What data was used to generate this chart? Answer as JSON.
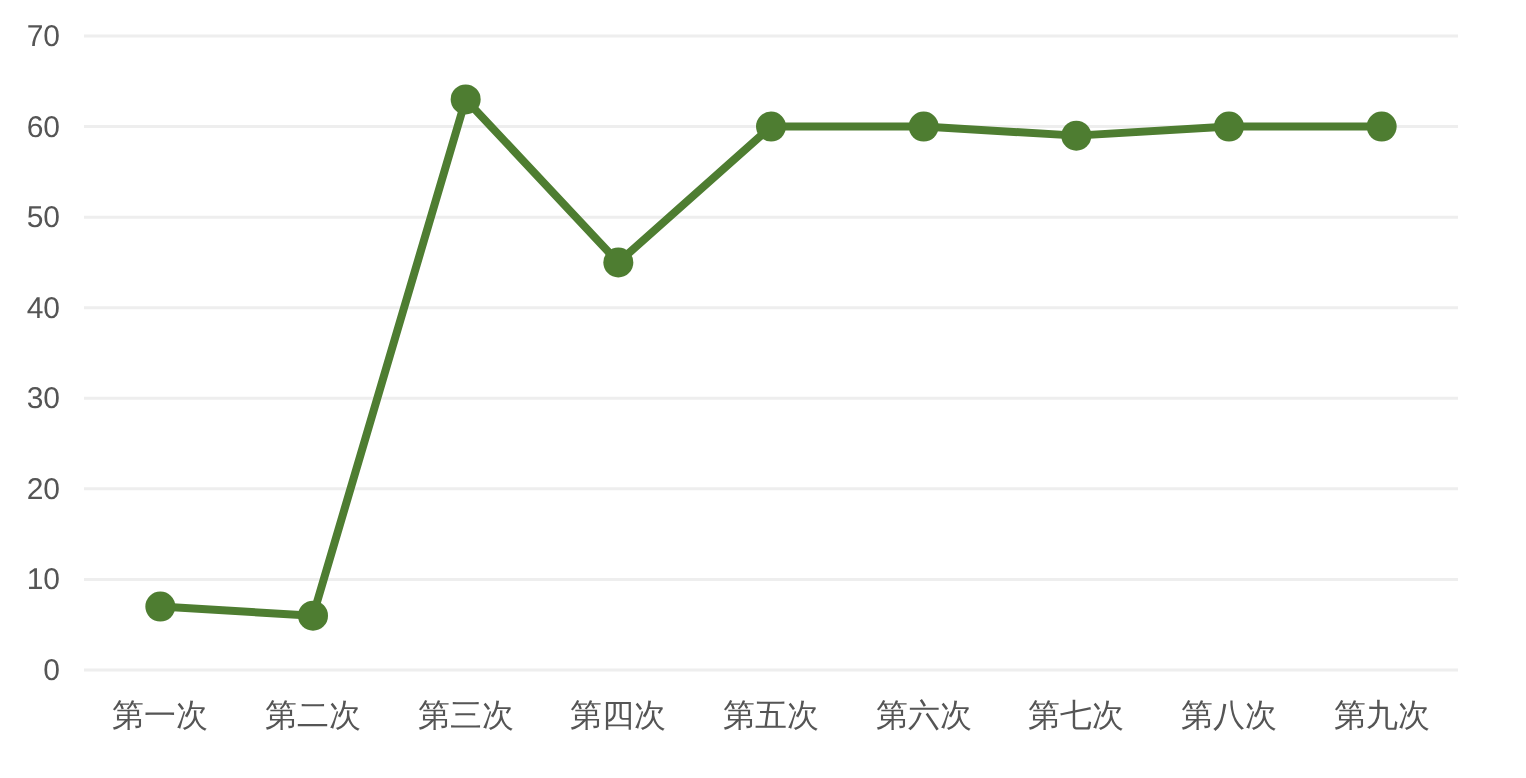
{
  "chart_data": {
    "type": "line",
    "categories": [
      "第一次",
      "第二次",
      "第三次",
      "第四次",
      "第五次",
      "第六次",
      "第七次",
      "第八次",
      "第九次"
    ],
    "series": [
      {
        "color": "#4e7d31",
        "values": [
          7,
          6,
          63,
          45,
          60,
          60,
          59,
          60,
          60
        ]
      }
    ],
    "ylim": [
      0,
      70
    ],
    "yticks": [
      0,
      10,
      20,
      30,
      40,
      50,
      60,
      70
    ],
    "grid": "y",
    "marker": "circle",
    "line_style": "solid"
  }
}
